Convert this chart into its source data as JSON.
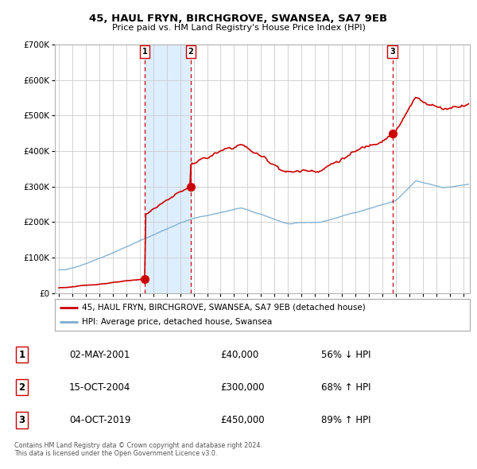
{
  "title": "45, HAUL FRYN, BIRCHGROVE, SWANSEA, SA7 9EB",
  "subtitle": "Price paid vs. HM Land Registry's House Price Index (HPI)",
  "legend_line1": "45, HAUL FRYN, BIRCHGROVE, SWANSEA, SA7 9EB (detached house)",
  "legend_line2": "HPI: Average price, detached house, Swansea",
  "footer1": "Contains HM Land Registry data © Crown copyright and database right 2024.",
  "footer2": "This data is licensed under the Open Government Licence v3.0.",
  "transactions": [
    {
      "num": 1,
      "date": "02-MAY-2001",
      "price": 40000,
      "x_year": 2001.37,
      "pct": "56% ↓ HPI"
    },
    {
      "num": 2,
      "date": "15-OCT-2004",
      "price": 300000,
      "x_year": 2004.79,
      "pct": "68% ↑ HPI"
    },
    {
      "num": 3,
      "date": "04-OCT-2019",
      "price": 450000,
      "x_year": 2019.75,
      "pct": "89% ↑ HPI"
    }
  ],
  "red_line_color": "#cc0000",
  "blue_line_color": "#7aabcf",
  "shade_color": "#ddeeff",
  "grid_color": "#cccccc",
  "background_color": "#ffffff",
  "plot_bg_color": "#ffffff",
  "ylim": [
    0,
    700000
  ],
  "xlim_start": 1994.7,
  "xlim_end": 2025.5
}
